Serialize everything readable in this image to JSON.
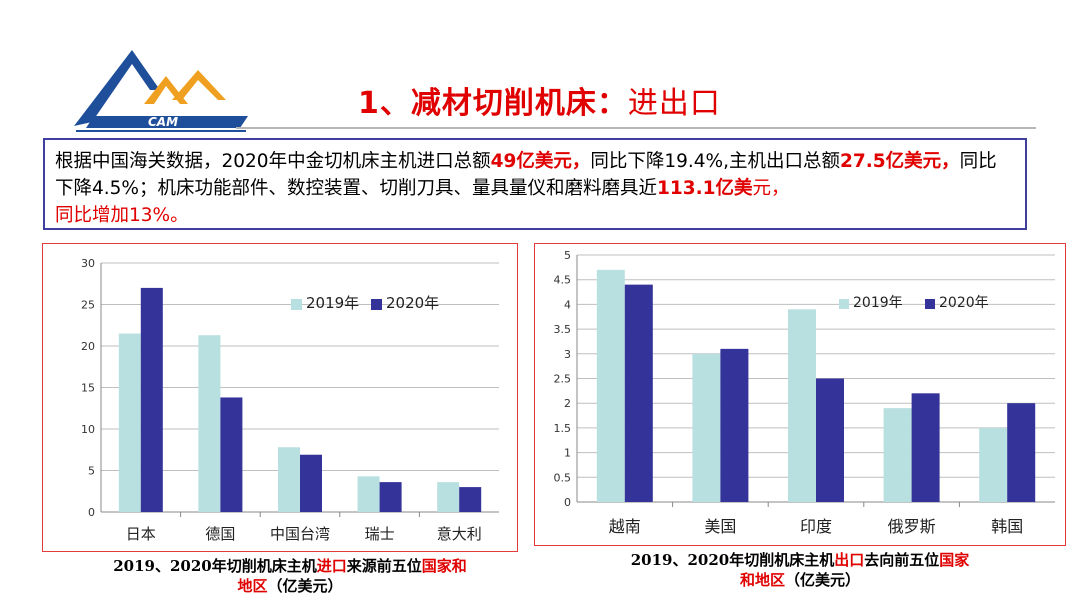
{
  "logo": {
    "text": "CAM"
  },
  "header": {
    "number": "1、",
    "title_bold": "减材切削机床",
    "sep": "：",
    "title_rest": "进出口"
  },
  "summary": {
    "t1": "根据中国海关数据，2020年中金切机床主机进口总额",
    "h1": "49亿美元，",
    "t2": "同比下降19.4%,主机出口总额",
    "h2": "27.5亿美元，",
    "t3": "同比下降4.5%；机床功能部件、数控装置、切削刀具、量具量仪和磨料磨具近",
    "h3": "113.1亿美",
    "h3b": "元，",
    "h4": "同比增加13%。"
  },
  "colors": {
    "series_2019": "#b8e0e0",
    "series_2020": "#333399",
    "red": "#e00000",
    "border_blue": "#3f3fa0"
  },
  "chart_data": [
    {
      "type": "bar",
      "categories": [
        "日本",
        "德国",
        "中国台湾",
        "瑞士",
        "意大利"
      ],
      "series": [
        {
          "name": "2019年",
          "values": [
            21.5,
            21.3,
            7.8,
            4.3,
            3.6
          ]
        },
        {
          "name": "2020年",
          "values": [
            27,
            13.8,
            6.9,
            3.6,
            3.0
          ]
        }
      ],
      "ylim": [
        0,
        30
      ],
      "yticks": [
        0,
        5,
        10,
        15,
        20,
        25,
        30
      ],
      "grid": true,
      "legend": "top-right",
      "caption": {
        "a": "2019、2020年切削机床主机",
        "b": "进口",
        "c": "来源前五位",
        "d": "国家和",
        "e": "地区",
        "f": "（亿美元）"
      }
    },
    {
      "type": "bar",
      "categories": [
        "越南",
        "美国",
        "印度",
        "俄罗斯",
        "韩国"
      ],
      "series": [
        {
          "name": "2019年",
          "values": [
            4.7,
            3.0,
            3.9,
            1.9,
            1.5
          ]
        },
        {
          "name": "2020年",
          "values": [
            4.4,
            3.1,
            2.5,
            2.2,
            2.0
          ]
        }
      ],
      "ylim": [
        0,
        5
      ],
      "yticks": [
        0,
        0.5,
        1,
        1.5,
        2,
        2.5,
        3,
        3.5,
        4,
        4.5,
        5
      ],
      "grid": true,
      "legend": "top-right",
      "caption": {
        "a": "2019、2020年切削机床主机",
        "b": "出口",
        "c": "去向前五位",
        "d": "国家",
        "e": "和地区",
        "f": "（亿美元）"
      }
    }
  ]
}
